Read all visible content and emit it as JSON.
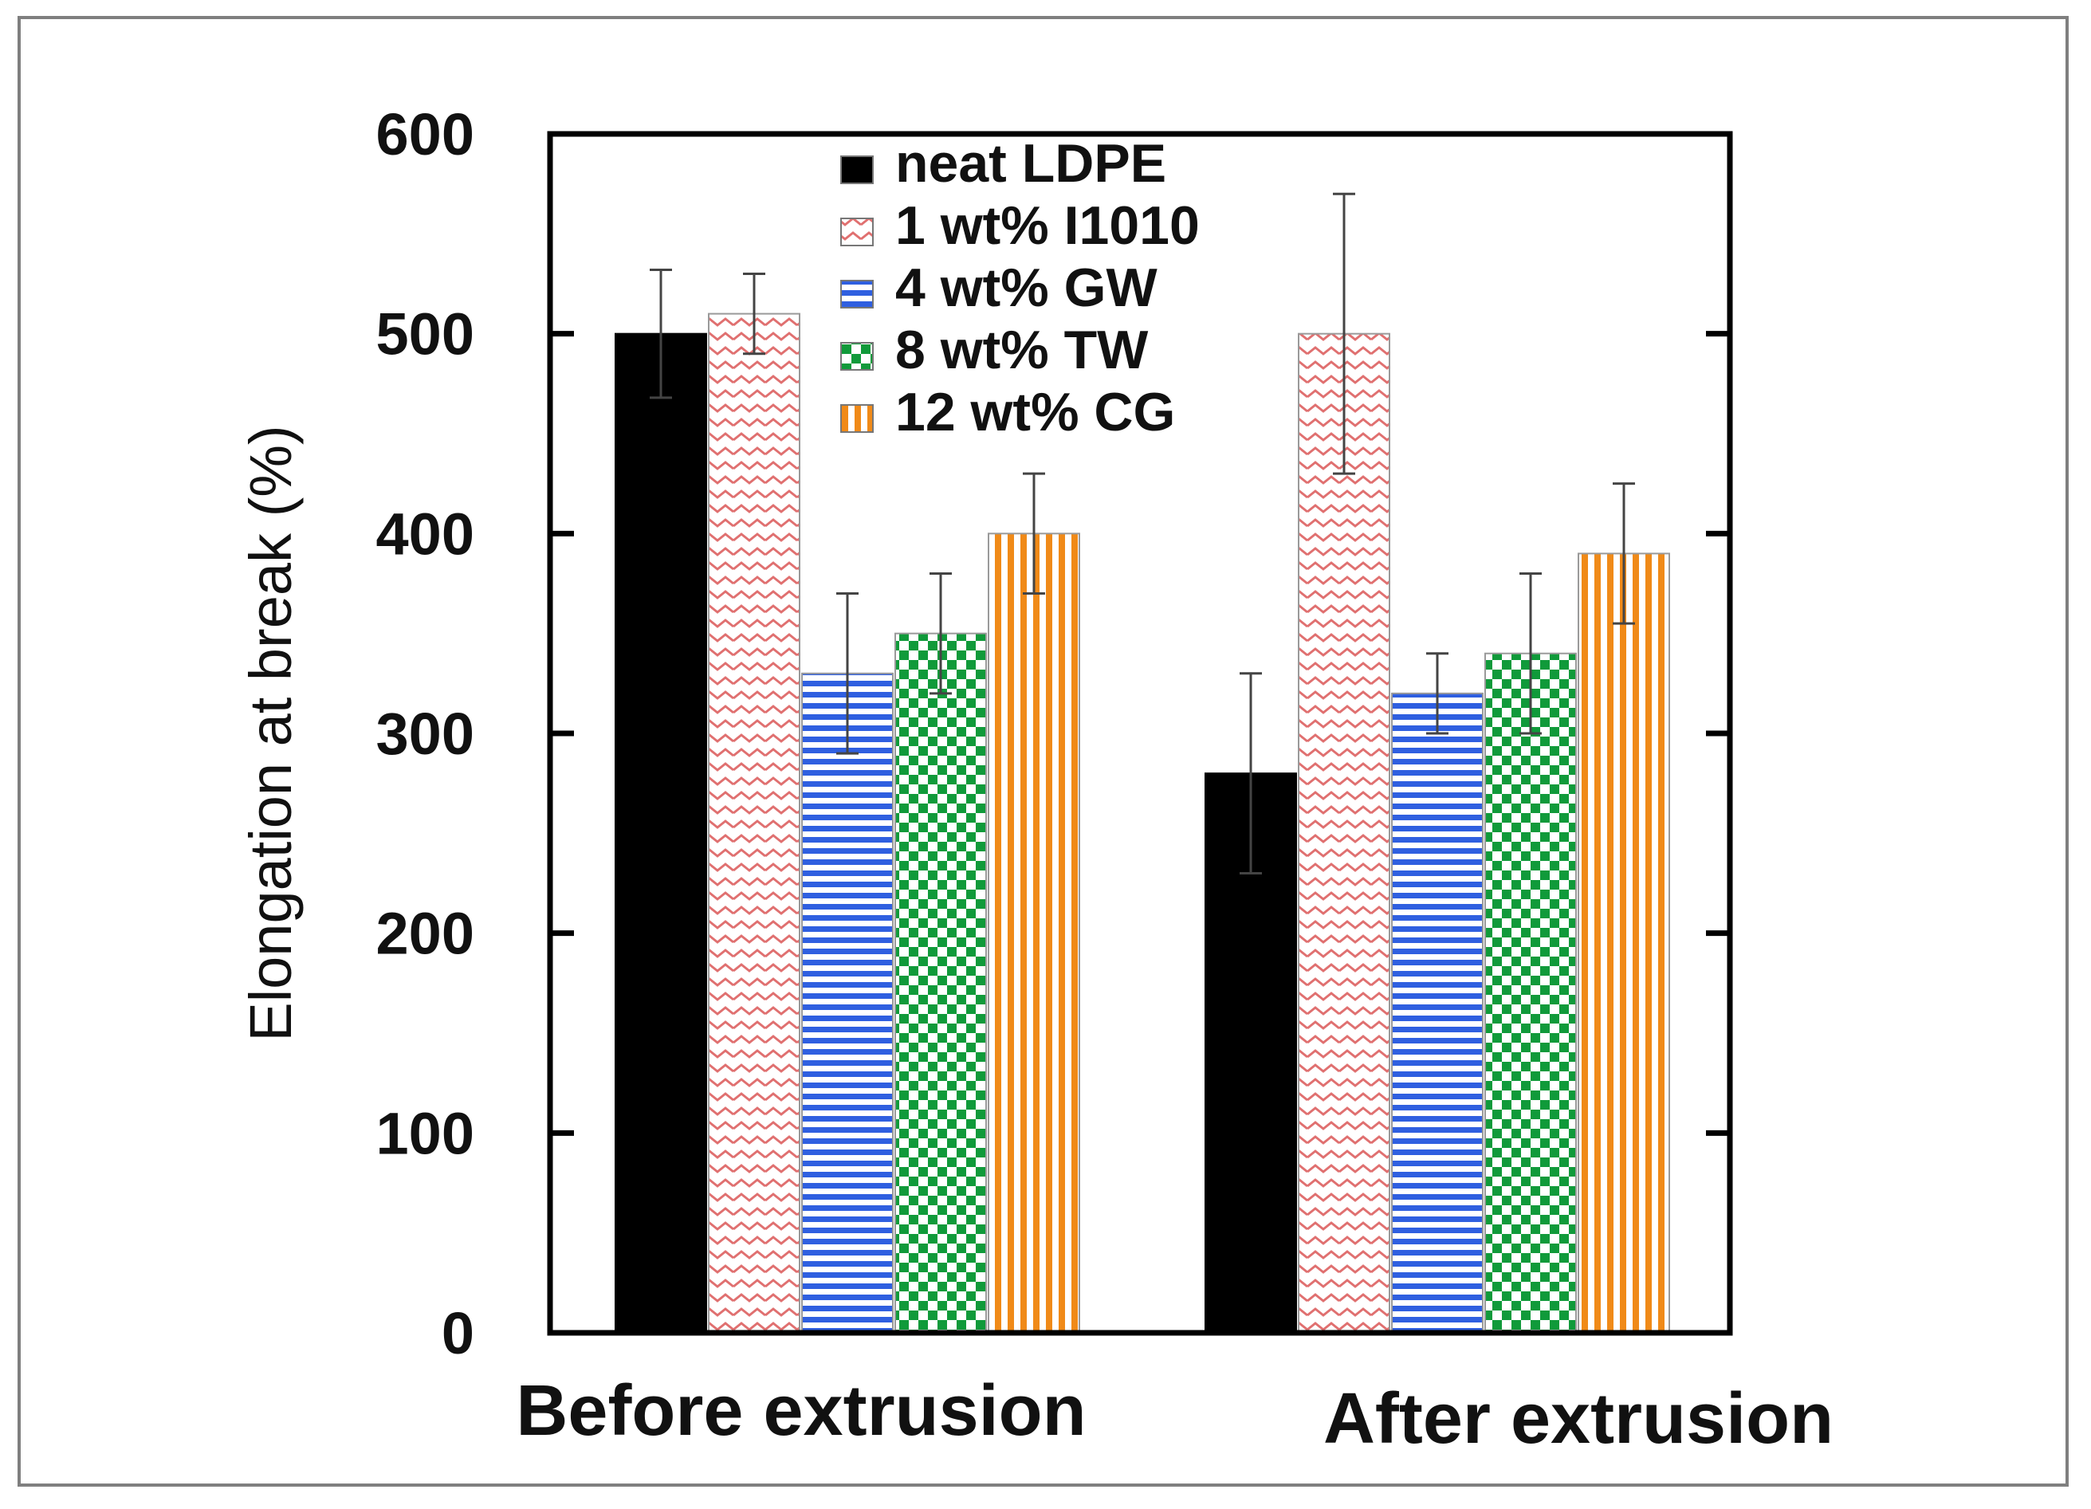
{
  "chart_data": {
    "type": "bar",
    "title": "",
    "xlabel": "",
    "ylabel": "Elongation at break (%)",
    "ylim": [
      0,
      600
    ],
    "yticks": [
      0,
      100,
      200,
      300,
      400,
      500,
      600
    ],
    "ytick_labels": [
      "0",
      "100",
      "200",
      "300",
      "400",
      "500",
      "600"
    ],
    "categories": [
      "Before extrusion",
      "After extrusion"
    ],
    "grid": false,
    "legend_position": "top-center",
    "series": [
      {
        "name": "neat LDPE",
        "values": [
          500,
          280
        ],
        "errors": [
          32,
          50
        ],
        "pattern": "solid",
        "color": "#000000"
      },
      {
        "name": "1 wt% I1010",
        "values": [
          510,
          500
        ],
        "errors": [
          20,
          70
        ],
        "pattern": "zigzag",
        "color": "#e07070"
      },
      {
        "name": "4 wt% GW",
        "values": [
          330,
          320
        ],
        "errors": [
          40,
          20
        ],
        "pattern": "horizontal",
        "color": "#2f5fe0"
      },
      {
        "name": "8 wt% TW",
        "values": [
          350,
          340
        ],
        "errors": [
          30,
          40
        ],
        "pattern": "checker",
        "color": "#109a3a"
      },
      {
        "name": "12 wt% CG",
        "values": [
          400,
          390
        ],
        "errors": [
          30,
          35
        ],
        "pattern": "vertical",
        "color": "#f08a18"
      }
    ]
  }
}
